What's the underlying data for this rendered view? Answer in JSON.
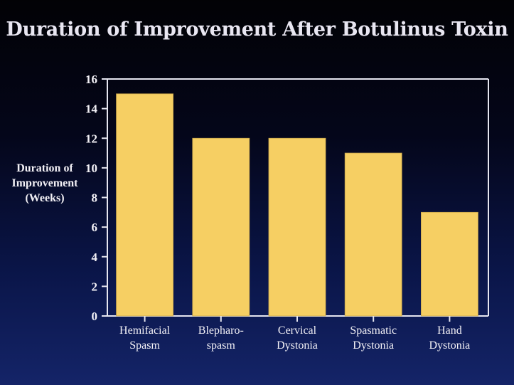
{
  "title": "Duration of Improvement After Botulinus Toxin",
  "chart_data": {
    "type": "bar",
    "title": "Duration of Improvement After Botulinus Toxin",
    "ylabel_lines": [
      "Duration of",
      "Improvement",
      "(Weeks)"
    ],
    "xlabel": "",
    "categories": [
      [
        "Hemifacial",
        "Spasm"
      ],
      [
        "Blepharo-",
        "spasm"
      ],
      [
        "Cervical",
        "Dystonia"
      ],
      [
        "Spasmatic",
        "Dystonia"
      ],
      [
        "Hand",
        "Dystonia"
      ]
    ],
    "values": [
      15,
      12,
      12,
      11,
      7
    ],
    "ylim": [
      0,
      16
    ],
    "yticks": [
      0,
      2,
      4,
      6,
      8,
      10,
      12,
      14,
      16
    ],
    "grid": false,
    "legend": "none",
    "colors": {
      "bar": "#f6cf63",
      "axis": "#e6e6f0",
      "text": "#f3f1f6"
    }
  }
}
